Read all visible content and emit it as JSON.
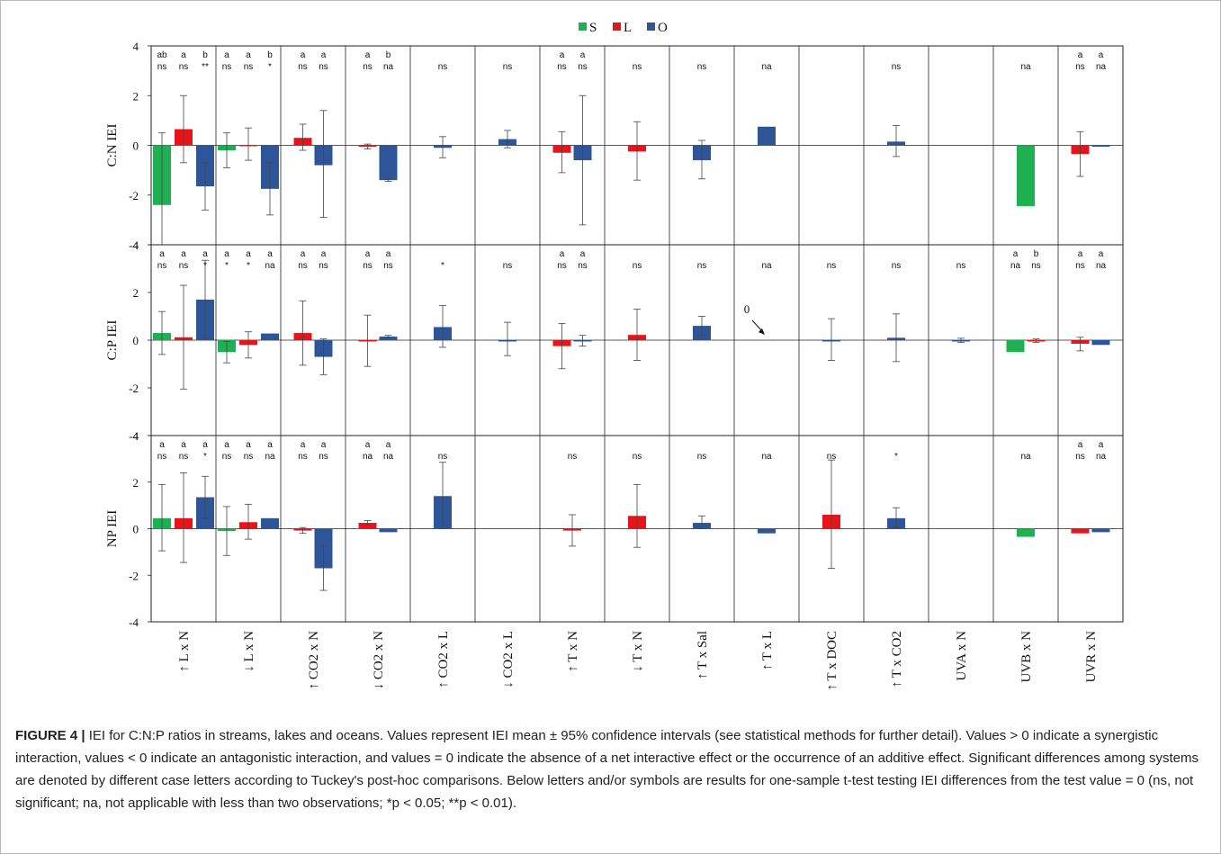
{
  "legend": [
    {
      "label": "S",
      "color": "#1eb053"
    },
    {
      "label": "L",
      "color": "#e8141c"
    },
    {
      "label": "O",
      "color": "#2e5597"
    }
  ],
  "colors": {
    "S": "#1eb053",
    "L": "#e8141c",
    "O": "#2e5597"
  },
  "caption": {
    "lead": "FIGURE 4 |",
    "text": " IEI for C:N:P ratios in streams, lakes and oceans. Values represent IEI mean ± 95% confidence intervals (see statistical methods for further detail). Values > 0 indicate a synergistic interaction, values < 0 indicate an antagonistic interaction, and values = 0 indicate the absence of a net interactive effect or the occurrence of an additive effect. Significant differences among systems are denoted by different case letters according to Tuckey's post-hoc comparisons. Below letters and/or symbols are results for one-sample t-test testing IEI differences from the test value = 0 (ns, not significant; na, not applicable with less than two observations; *p < 0.05; **p < 0.01)."
  },
  "chart_data": {
    "type": "bar",
    "categories": [
      "↑ L x N",
      "↓ L x N",
      "↑ CO2 x N",
      "↓ CO2 x N",
      "↑ CO2 x L",
      "↓ CO2 x L",
      "↑ T x N",
      "↓ T x N",
      "↑ T x Sal",
      "↑ T x L",
      "↑ T x DOC",
      "↑ T x CO2",
      "UVA x N",
      "UVB x N",
      "UVR x N"
    ],
    "series_names": [
      "S",
      "L",
      "O"
    ],
    "ylim": [
      -4,
      4
    ],
    "yticks": [
      4,
      2,
      0,
      -2,
      -4
    ],
    "panels": [
      {
        "ylabel": "C:N IEI",
        "groups": [
          {
            "bars": [
              {
                "s": "S",
                "v": -2.4,
                "lo": -4.0,
                "hi": 0.5,
                "l": "ab",
                "t": "ns"
              },
              {
                "s": "L",
                "v": 0.65,
                "lo": -0.7,
                "hi": 2.0,
                "l": "a",
                "t": "ns"
              },
              {
                "s": "O",
                "v": -1.65,
                "lo": -2.6,
                "hi": -0.7,
                "l": "b",
                "t": "**"
              }
            ]
          },
          {
            "bars": [
              {
                "s": "S",
                "v": -0.2,
                "lo": -0.9,
                "hi": 0.5,
                "l": "a",
                "t": "ns"
              },
              {
                "s": "L",
                "v": 0.02,
                "lo": -0.6,
                "hi": 0.7,
                "l": "a",
                "t": "ns"
              },
              {
                "s": "O",
                "v": -1.75,
                "lo": -2.8,
                "hi": -0.7,
                "l": "b",
                "t": "*"
              }
            ]
          },
          {
            "bars": [
              {
                "s": "L",
                "v": 0.3,
                "lo": -0.2,
                "hi": 0.85,
                "l": "a",
                "t": "ns"
              },
              {
                "s": "O",
                "v": -0.8,
                "lo": -2.9,
                "hi": 1.4,
                "l": "a",
                "t": "ns"
              }
            ]
          },
          {
            "bars": [
              {
                "s": "L",
                "v": -0.05,
                "lo": -0.15,
                "hi": 0.05,
                "l": "a",
                "t": "ns"
              },
              {
                "s": "O",
                "v": -1.4,
                "lo": -1.45,
                "hi": -1.35,
                "l": "b",
                "t": "na"
              }
            ]
          },
          {
            "bars": [
              {
                "s": "O",
                "v": -0.1,
                "lo": -0.5,
                "hi": 0.35,
                "t": "ns"
              }
            ]
          },
          {
            "bars": [
              {
                "s": "O",
                "v": 0.25,
                "lo": -0.1,
                "hi": 0.6,
                "t": "ns"
              }
            ]
          },
          {
            "bars": [
              {
                "s": "L",
                "v": -0.3,
                "lo": -1.1,
                "hi": 0.55,
                "l": "a",
                "t": "ns"
              },
              {
                "s": "O",
                "v": -0.6,
                "lo": -3.2,
                "hi": 2.0,
                "l": "a",
                "t": "ns"
              }
            ]
          },
          {
            "bars": [
              {
                "s": "L",
                "v": -0.25,
                "lo": -1.4,
                "hi": 0.95,
                "t": "ns"
              }
            ]
          },
          {
            "bars": [
              {
                "s": "O",
                "v": -0.6,
                "lo": -1.35,
                "hi": 0.2,
                "t": "ns"
              }
            ]
          },
          {
            "bars": [
              {
                "s": "O",
                "v": 0.75,
                "t": "na"
              }
            ]
          },
          {
            "bars": []
          },
          {
            "bars": [
              {
                "s": "O",
                "v": 0.15,
                "lo": -0.45,
                "hi": 0.8,
                "t": "ns"
              }
            ]
          },
          {
            "bars": []
          },
          {
            "bars": [
              {
                "s": "S",
                "v": -2.45,
                "t": "na"
              }
            ]
          },
          {
            "bars": [
              {
                "s": "L",
                "v": -0.35,
                "lo": -1.25,
                "hi": 0.55,
                "l": "a",
                "t": "ns"
              },
              {
                "s": "O",
                "v": -0.05,
                "l": "a",
                "t": "na"
              }
            ]
          }
        ]
      },
      {
        "ylabel": "C:P IEI",
        "groups": [
          {
            "bars": [
              {
                "s": "S",
                "v": 0.3,
                "lo": -0.6,
                "hi": 1.2,
                "l": "a",
                "t": "ns"
              },
              {
                "s": "L",
                "v": 0.12,
                "lo": -2.05,
                "hi": 2.3,
                "l": "a",
                "t": "ns"
              },
              {
                "s": "O",
                "v": 1.7,
                "lo": 0.1,
                "hi": 3.35,
                "l": "a",
                "t": "*"
              }
            ]
          },
          {
            "bars": [
              {
                "s": "S",
                "v": -0.5,
                "lo": -0.95,
                "hi": -0.05,
                "l": "a",
                "t": "*"
              },
              {
                "s": "L",
                "v": -0.2,
                "lo": -0.75,
                "hi": 0.35,
                "l": "a",
                "t": "*"
              },
              {
                "s": "O",
                "v": 0.28,
                "l": "a",
                "t": "na"
              }
            ]
          },
          {
            "bars": [
              {
                "s": "L",
                "v": 0.3,
                "lo": -1.05,
                "hi": 1.65,
                "l": "a",
                "t": "ns"
              },
              {
                "s": "O",
                "v": -0.7,
                "lo": -1.45,
                "hi": 0.05,
                "l": "a",
                "t": "ns"
              }
            ]
          },
          {
            "bars": [
              {
                "s": "L",
                "v": 0.0,
                "lo": -1.1,
                "hi": 1.05,
                "l": "a",
                "t": "ns"
              },
              {
                "s": "O",
                "v": 0.15,
                "lo": 0.1,
                "hi": 0.2,
                "l": "a",
                "t": "ns"
              }
            ]
          },
          {
            "bars": [
              {
                "s": "O",
                "v": 0.55,
                "lo": -0.3,
                "hi": 1.45,
                "t": "*"
              }
            ]
          },
          {
            "bars": [
              {
                "s": "O",
                "v": 0.0,
                "lo": -0.65,
                "hi": 0.75,
                "t": "ns"
              }
            ]
          },
          {
            "bars": [
              {
                "s": "L",
                "v": -0.25,
                "lo": -1.2,
                "hi": 0.7,
                "l": "a",
                "t": "ns"
              },
              {
                "s": "O",
                "v": 0.0,
                "lo": -0.25,
                "hi": 0.2,
                "l": "a",
                "t": "ns"
              }
            ]
          },
          {
            "bars": [
              {
                "s": "L",
                "v": 0.22,
                "lo": -0.85,
                "hi": 1.3,
                "t": "ns"
              }
            ]
          },
          {
            "bars": [
              {
                "s": "O",
                "v": 0.6,
                "lo": 0.2,
                "hi": 1.0,
                "t": "ns"
              }
            ]
          },
          {
            "bars": [],
            "t": "na",
            "note": "0"
          },
          {
            "bars": [
              {
                "s": "O",
                "v": 0.0,
                "lo": -0.85,
                "hi": 0.9,
                "t": "ns"
              }
            ]
          },
          {
            "bars": [
              {
                "s": "O",
                "v": 0.1,
                "lo": -0.9,
                "hi": 1.1,
                "t": "ns"
              }
            ]
          },
          {
            "bars": [
              {
                "s": "O",
                "v": 0.0,
                "lo": -0.1,
                "hi": 0.08,
                "t": "ns"
              }
            ]
          },
          {
            "bars": [
              {
                "s": "S",
                "v": -0.5,
                "l": "a",
                "t": "na"
              },
              {
                "s": "L",
                "v": 0.0,
                "lo": -0.1,
                "hi": 0.05,
                "l": "b",
                "t": "ns"
              }
            ]
          },
          {
            "bars": [
              {
                "s": "L",
                "v": -0.15,
                "lo": -0.45,
                "hi": 0.12,
                "l": "a",
                "t": "ns"
              },
              {
                "s": "O",
                "v": -0.2,
                "l": "a",
                "t": "na"
              }
            ]
          }
        ]
      },
      {
        "ylabel": "NP IEI",
        "groups": [
          {
            "bars": [
              {
                "s": "S",
                "v": 0.45,
                "lo": -0.95,
                "hi": 1.9,
                "l": "a",
                "t": "ns"
              },
              {
                "s": "L",
                "v": 0.45,
                "lo": -1.45,
                "hi": 2.4,
                "l": "a",
                "t": "ns"
              },
              {
                "s": "O",
                "v": 1.35,
                "lo": 0.45,
                "hi": 2.25,
                "l": "a",
                "t": "*"
              }
            ]
          },
          {
            "bars": [
              {
                "s": "S",
                "v": -0.1,
                "lo": -1.15,
                "hi": 0.95,
                "l": "a",
                "t": "ns"
              },
              {
                "s": "L",
                "v": 0.28,
                "lo": -0.45,
                "hi": 1.05,
                "l": "a",
                "t": "ns"
              },
              {
                "s": "O",
                "v": 0.45,
                "l": "a",
                "t": "na"
              }
            ]
          },
          {
            "bars": [
              {
                "s": "L",
                "v": -0.08,
                "lo": -0.2,
                "hi": 0.05,
                "l": "a",
                "t": "ns"
              },
              {
                "s": "O",
                "v": -1.7,
                "lo": -2.65,
                "hi": -0.75,
                "l": "a",
                "t": "ns"
              }
            ]
          },
          {
            "bars": [
              {
                "s": "L",
                "v": 0.25,
                "lo": 0.15,
                "hi": 0.35,
                "l": "a",
                "t": "na"
              },
              {
                "s": "O",
                "v": -0.15,
                "l": "a",
                "t": "na"
              }
            ]
          },
          {
            "bars": [
              {
                "s": "O",
                "v": 1.4,
                "lo": 0.0,
                "hi": 2.85,
                "t": "ns"
              }
            ]
          },
          {
            "bars": []
          },
          {
            "bars": [
              {
                "s": "L",
                "v": -0.08,
                "lo": -0.75,
                "hi": 0.6,
                "t": "ns"
              }
            ]
          },
          {
            "bars": [
              {
                "s": "L",
                "v": 0.55,
                "lo": -0.8,
                "hi": 1.9,
                "t": "ns"
              }
            ]
          },
          {
            "bars": [
              {
                "s": "O",
                "v": 0.25,
                "lo": 0.0,
                "hi": 0.55,
                "t": "ns"
              }
            ]
          },
          {
            "bars": [
              {
                "s": "O",
                "v": -0.2,
                "t": "na"
              }
            ]
          },
          {
            "bars": [
              {
                "s": "L",
                "v": 0.6,
                "lo": -1.7,
                "hi": 2.95,
                "t": "ns"
              }
            ]
          },
          {
            "bars": [
              {
                "s": "O",
                "v": 0.45,
                "lo": 0.05,
                "hi": 0.9,
                "t": "*"
              }
            ]
          },
          {
            "bars": []
          },
          {
            "bars": [
              {
                "s": "S",
                "v": -0.35,
                "t": "na"
              }
            ]
          },
          {
            "bars": [
              {
                "s": "L",
                "v": -0.2,
                "l": "a",
                "t": "ns"
              },
              {
                "s": "O",
                "v": -0.15,
                "l": "a",
                "t": "na"
              }
            ]
          }
        ]
      }
    ]
  }
}
